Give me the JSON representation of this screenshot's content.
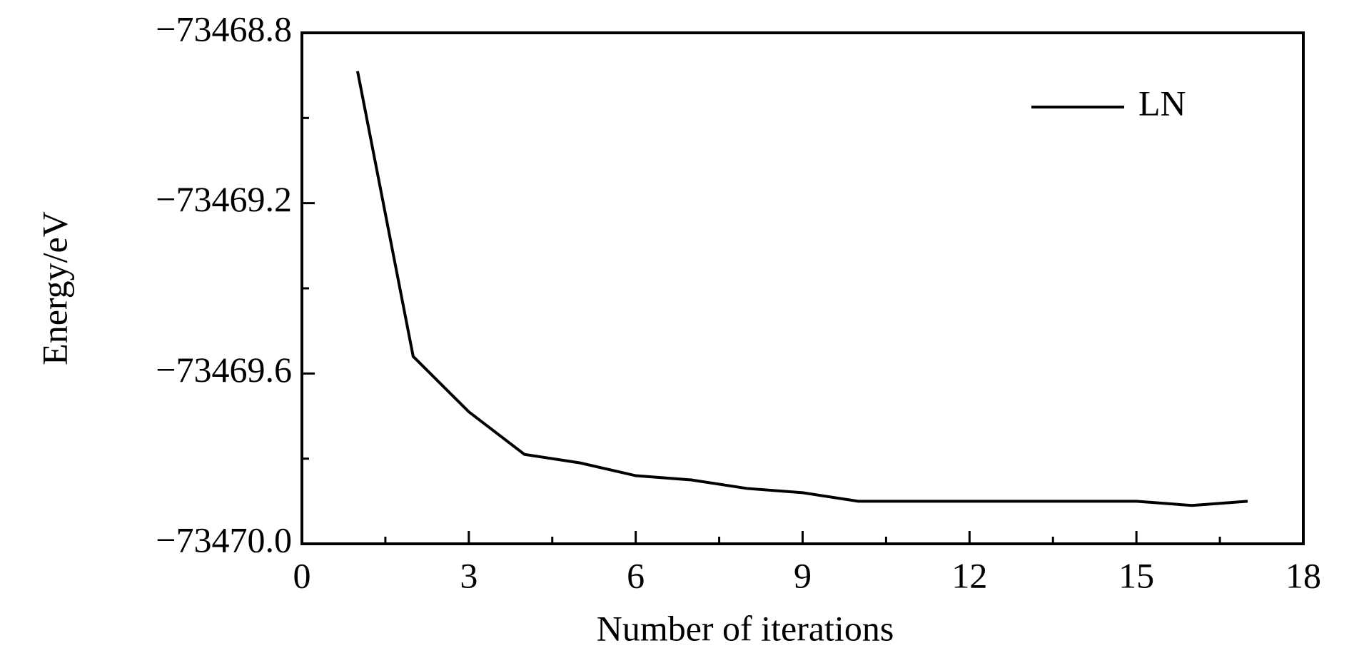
{
  "chart_data": {
    "type": "line",
    "xlabel": "Number of iterations",
    "ylabel": "Energy/eV",
    "x": [
      1,
      2,
      3,
      4,
      5,
      6,
      7,
      8,
      9,
      10,
      11,
      12,
      13,
      14,
      15,
      16,
      17
    ],
    "series": [
      {
        "name": "LN",
        "color": "#000000",
        "values": [
          -73468.89,
          -73469.56,
          -73469.69,
          -73469.79,
          -73469.81,
          -73469.84,
          -73469.85,
          -73469.87,
          -73469.88,
          -73469.9,
          -73469.9,
          -73469.9,
          -73469.9,
          -73469.9,
          -73469.9,
          -73469.91,
          -73469.9
        ]
      }
    ],
    "xlim": [
      0,
      18
    ],
    "xticks": [
      0,
      3,
      6,
      9,
      12,
      15,
      18
    ],
    "x_minor_ticks": [
      1.5,
      4.5,
      7.5,
      10.5,
      13.5,
      16.5
    ],
    "ylim": [
      -73470.0,
      -73468.8
    ],
    "yticks": [
      {
        "value": -73470.0,
        "label": "−73470.0"
      },
      {
        "value": -73469.6,
        "label": "−73469.6"
      },
      {
        "value": -73469.2,
        "label": "−73469.2"
      },
      {
        "value": -73468.8,
        "label": "−73468.8"
      }
    ],
    "y_minor_ticks": [
      -73469.8,
      -73469.4,
      -73469.0
    ],
    "legend": "upper right"
  }
}
